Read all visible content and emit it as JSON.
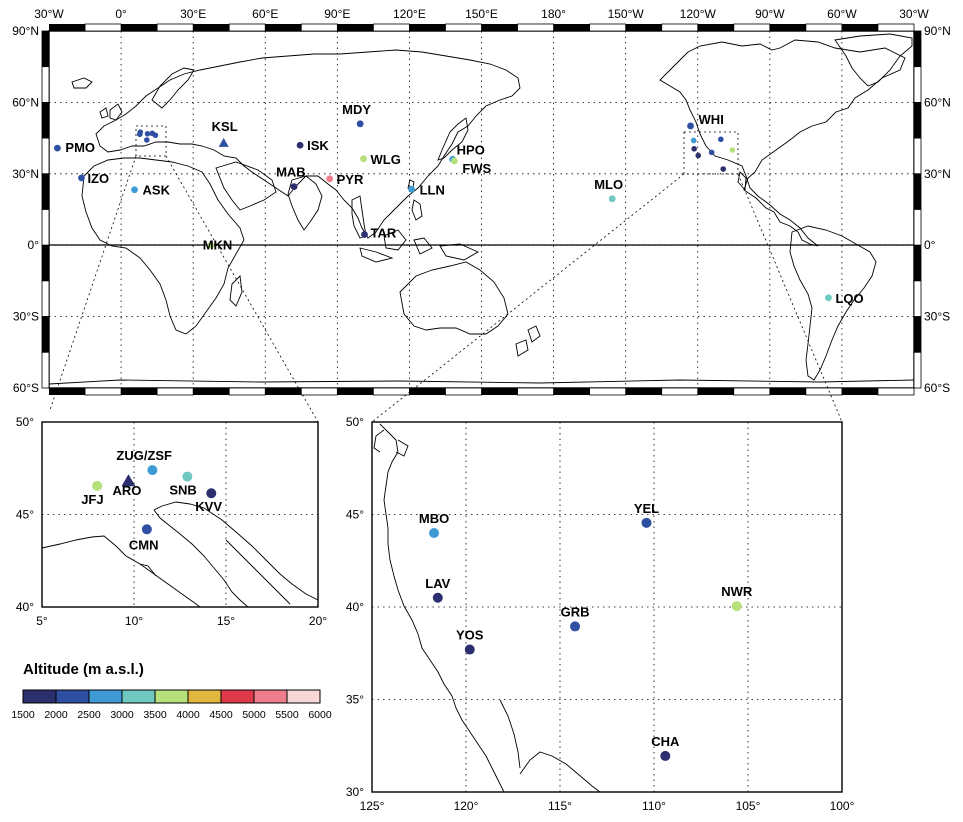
{
  "world": {
    "lon_ticks": [
      "30°W",
      "0°",
      "30°E",
      "60°E",
      "90°E",
      "120°E",
      "150°E",
      "180°",
      "150°W",
      "120°W",
      "90°W",
      "60°W",
      "30°W"
    ],
    "lat_ticks": [
      "90°N",
      "60°N",
      "30°N",
      "0°",
      "30°S",
      "60°S"
    ],
    "stations": [
      {
        "code": "PMO",
        "lon": -26.5,
        "lat": 40.8,
        "alt": "2000-2500"
      },
      {
        "code": "IZO",
        "lon": -16.5,
        "lat": 28.3,
        "alt": "2000-2500"
      },
      {
        "code": "ASK",
        "lon": 5.6,
        "lat": 23.3,
        "alt": "2500-3000"
      },
      {
        "code": "KSL",
        "lon": 42.7,
        "lat": 43.0,
        "alt": "2000-2500",
        "marker": "triangle"
      },
      {
        "code": "ISK",
        "lon": 74.5,
        "lat": 42.0,
        "alt": "1500-2000"
      },
      {
        "code": "MDY",
        "lon": 99.5,
        "lat": 51.0,
        "alt": "2000-2500"
      },
      {
        "code": "WLG",
        "lon": 100.9,
        "lat": 36.3,
        "alt": "3500-4000"
      },
      {
        "code": "MAB",
        "lon": 72.0,
        "lat": 24.6,
        "alt": "1500-2000"
      },
      {
        "code": "PYR",
        "lon": 86.8,
        "lat": 27.9,
        "alt": "5000-5500"
      },
      {
        "code": "HPO",
        "lon": 138.0,
        "lat": 36.1,
        "alt": "2500-3000"
      },
      {
        "code": "FWS",
        "lon": 138.7,
        "lat": 35.4,
        "alt": "3500-4000"
      },
      {
        "code": "LLN",
        "lon": 120.9,
        "lat": 23.5,
        "alt": "2500-3000"
      },
      {
        "code": "TAR",
        "lon": 101.3,
        "lat": 4.5,
        "alt": "1500-2000"
      },
      {
        "code": "MKN",
        "lon": 37.3,
        "lat": -0.1,
        "alt": "3500-4000"
      },
      {
        "code": "MLO",
        "lon": -155.6,
        "lat": 19.5,
        "alt": "3000-3500"
      },
      {
        "code": "WHI",
        "lon": -123.0,
        "lat": 50.1,
        "alt": "2000-2500"
      },
      {
        "code": "LQO",
        "lon": -65.6,
        "lat": -22.1,
        "alt": "3000-3500"
      }
    ]
  },
  "europe_inset": {
    "lon_ticks": [
      "5°",
      "10°",
      "15°",
      "20°"
    ],
    "lat_ticks": [
      "50°",
      "45°",
      "40°"
    ],
    "stations": [
      {
        "code": "ZUG/ZSF",
        "lon": 11.0,
        "lat": 47.4,
        "alt": "2500-3000"
      },
      {
        "code": "SNB",
        "lon": 12.9,
        "lat": 47.05,
        "alt": "3000-3500"
      },
      {
        "code": "JFJ",
        "lon": 8.0,
        "lat": 46.55,
        "alt": "3500-4000"
      },
      {
        "code": "ARO",
        "lon": 9.7,
        "lat": 46.8,
        "alt": "1500-2000",
        "marker": "triangle"
      },
      {
        "code": "KVV",
        "lon": 14.2,
        "lat": 46.15,
        "alt": "1500-2000"
      },
      {
        "code": "CMN",
        "lon": 10.7,
        "lat": 44.2,
        "alt": "2000-2500"
      }
    ]
  },
  "usa_inset": {
    "lon_ticks": [
      "125°",
      "120°",
      "115°",
      "110°",
      "105°",
      "100°"
    ],
    "lat_ticks": [
      "50°",
      "45°",
      "40°",
      "35°",
      "30°"
    ],
    "stations": [
      {
        "code": "MBO",
        "lon": -121.7,
        "lat": 44.0,
        "alt": "2500-3000"
      },
      {
        "code": "YEL",
        "lon": -110.4,
        "lat": 44.55,
        "alt": "2000-2500"
      },
      {
        "code": "LAV",
        "lon": -121.5,
        "lat": 40.5,
        "alt": "1500-2000"
      },
      {
        "code": "GRB",
        "lon": -114.2,
        "lat": 38.95,
        "alt": "2000-2500"
      },
      {
        "code": "NWR",
        "lon": -105.6,
        "lat": 40.05,
        "alt": "3500-4000"
      },
      {
        "code": "YOS",
        "lon": -119.8,
        "lat": 37.7,
        "alt": "1500-2000"
      },
      {
        "code": "CHA",
        "lon": -109.4,
        "lat": 31.95,
        "alt": "1500-2000"
      }
    ]
  },
  "legend": {
    "title": "Altitude (m a.s.l.)",
    "ticks": [
      "1500",
      "2000",
      "2500",
      "3000",
      "3500",
      "4000",
      "4500",
      "5000",
      "5500",
      "6000"
    ],
    "colors": [
      "#2b2f6e",
      "#2f4fa2",
      "#3f9bd6",
      "#6fc9c0",
      "#b6e07a",
      "#e2b73e",
      "#e03a4a",
      "#ee7e8e",
      "#f8d7d6"
    ]
  },
  "alt_colors": {
    "1500-2000": "#2b2f6e",
    "2000-2500": "#2f4fa2",
    "2500-3000": "#3f9bd6",
    "3000-3500": "#6fc9c0",
    "3500-4000": "#b6e07a",
    "4000-4500": "#e2b73e",
    "4500-5000": "#e03a4a",
    "5000-5500": "#ee7e8e",
    "5500-6000": "#f8d7d6"
  }
}
